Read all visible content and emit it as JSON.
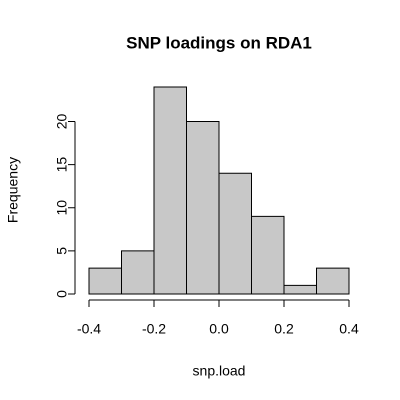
{
  "chart_data": {
    "type": "histogram",
    "title": "SNP loadings on RDA1",
    "xlabel": "snp.load",
    "ylabel": "Frequency",
    "bins": [
      -0.4,
      -0.3,
      -0.2,
      -0.1,
      0,
      0.1,
      0.2,
      0.3,
      0.4
    ],
    "counts": [
      3,
      5,
      24,
      20,
      14,
      9,
      1,
      3
    ],
    "color": "#c8c8c8",
    "xlim": [
      -0.4,
      0.4
    ],
    "xticks": [
      -0.4,
      -0.2,
      {
        "value": 0,
        "label": "0.0"
      },
      0.2,
      0.4
    ],
    "ylim": [
      0,
      24
    ],
    "yticks": [
      0,
      5,
      10,
      15,
      20
    ]
  }
}
